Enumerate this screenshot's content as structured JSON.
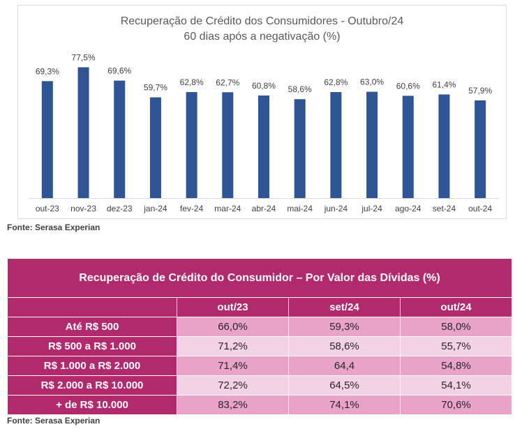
{
  "chart": {
    "title_line1": "Recuperação de Crédito dos Consumidores - Outubro/24",
    "title_line2": "60 dias após a negativação (%)",
    "source": "Fonte: Serasa Experian",
    "bar_color": "#2f5597"
  },
  "chart_data": {
    "type": "bar",
    "title": "Recuperação de Crédito dos Consumidores - Outubro/24 60 dias após a negativação (%)",
    "categories": [
      "out-23",
      "nov-23",
      "dez-23",
      "jan-24",
      "fev-24",
      "mar-24",
      "abr-24",
      "mai-24",
      "jun-24",
      "jul-24",
      "ago-24",
      "set-24",
      "out-24"
    ],
    "values": [
      69.3,
      77.5,
      69.6,
      59.7,
      62.8,
      62.7,
      60.8,
      58.6,
      62.8,
      63.0,
      60.6,
      61.4,
      57.9
    ],
    "labels": [
      "69,3%",
      "77,5%",
      "69,6%",
      "59,7%",
      "62,8%",
      "62,7%",
      "60,8%",
      "58,6%",
      "62,8%",
      "63,0%",
      "60,6%",
      "61,4%",
      "57,9%"
    ],
    "xlabel": "",
    "ylabel": "",
    "ylim": [
      0,
      85
    ],
    "grid": false,
    "legend": "none"
  },
  "table": {
    "title": "Recuperação de Crédito do Consumidor – Por Valor das Dívidas (%)",
    "headers": [
      "out/23",
      "set/24",
      "out/24"
    ],
    "rows": [
      {
        "label": "Até R$ 500",
        "values": [
          "66,0%",
          "59,3%",
          "58,0%"
        ]
      },
      {
        "label": "R$ 500 a R$ 1.000",
        "values": [
          "71,2%",
          "58,6%",
          "55,7%"
        ]
      },
      {
        "label": "R$ 1.000 a R$ 2.000",
        "values": [
          "71,4%",
          "64,4",
          "54,8%"
        ]
      },
      {
        "label": "R$ 2.000 a R$ 10.000",
        "values": [
          "72,2%",
          "64,5%",
          "54,1%"
        ]
      },
      {
        "label": "+ de R$ 10.000",
        "values": [
          "83,2%",
          "74,1%",
          "70,6%"
        ]
      }
    ],
    "source": "Fonte: Serasa Experian",
    "header_color": "#b22a6e",
    "odd_row_color": "#e9a3c9",
    "even_row_color": "#f4d2e5"
  }
}
